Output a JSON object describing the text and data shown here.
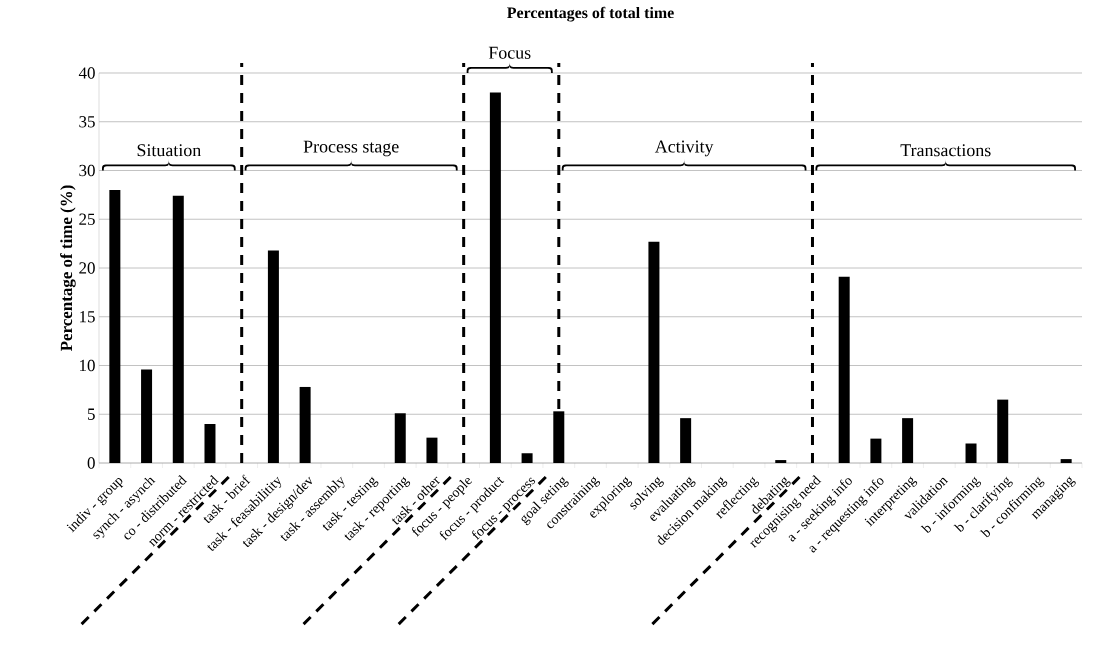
{
  "chart_data": {
    "type": "bar",
    "title": "Percentages of total time",
    "ylabel": "Percentage of time (%)",
    "categories": [
      "indiv - group",
      "synch - asynch",
      "co - distributed",
      "norm - restricted",
      "task - brief",
      "task - feasabilitity",
      "task - design/dev",
      "task - assembly",
      "task - testing",
      "task - reporting",
      "task - other",
      "focus - people",
      "focus - product",
      "focus - process",
      "goal seting",
      "constraining",
      "exploring",
      "solving",
      "evaluating",
      "decision making",
      "reflecting",
      "debating",
      "recognising need",
      "a - seeking info",
      "a - requesting info",
      "interpreting",
      "validation",
      "b - informing",
      "b - clarifying",
      "b - confirming",
      "managing"
    ],
    "values": [
      28,
      9.6,
      27.4,
      4.0,
      0,
      21.8,
      7.8,
      0,
      0,
      5.1,
      2.6,
      0,
      38.0,
      1.0,
      5.3,
      0,
      0,
      22.7,
      4.6,
      0,
      0,
      0.3,
      0,
      19.1,
      2.5,
      4.6,
      0,
      2.0,
      6.5,
      0,
      0.4
    ],
    "color": "#000000",
    "ylim": [
      0,
      40
    ],
    "yticks": [
      0,
      5,
      10,
      15,
      20,
      25,
      30,
      35,
      40
    ],
    "grid": "y",
    "ref_lines": [
      {
        "axis": "x",
        "value": "task - brief",
        "color": "#000000",
        "line_style": "dashed"
      },
      {
        "axis": "x",
        "value": "focus - people",
        "color": "#000000",
        "line_style": "dashed"
      },
      {
        "axis": "x",
        "value": "goal seting",
        "color": "#000000",
        "line_style": "dashed"
      },
      {
        "axis": "x",
        "value": "recognising need",
        "color": "#000000",
        "line_style": "dashed"
      }
    ],
    "annotations": [
      "Situation",
      "Process stage",
      "Focus",
      "Activity",
      "Transactions"
    ]
  }
}
